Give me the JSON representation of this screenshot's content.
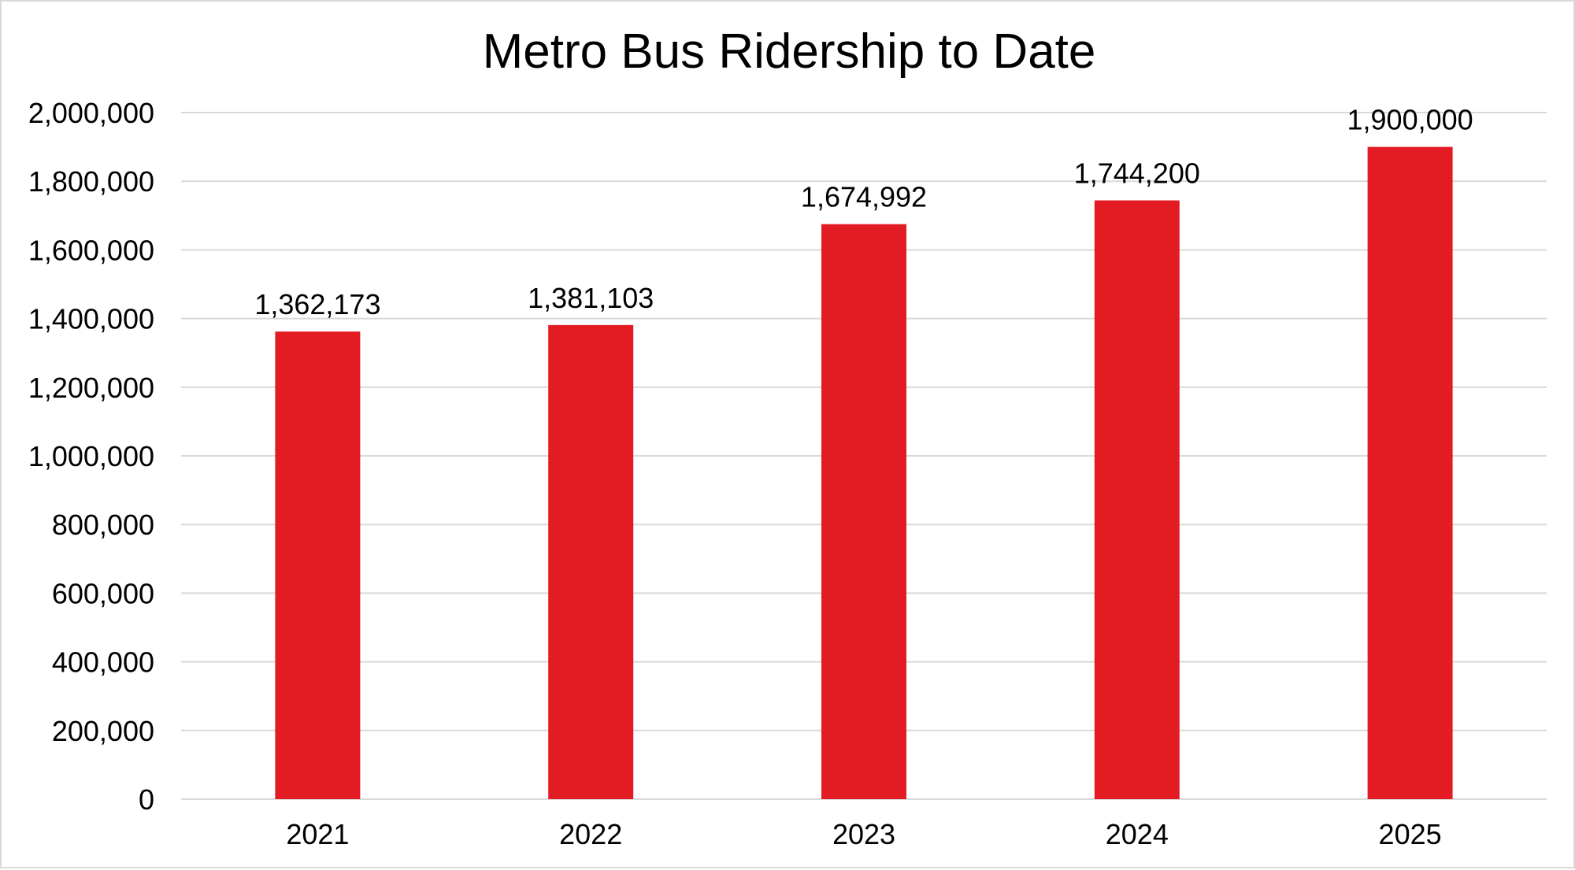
{
  "chart_data": {
    "type": "bar",
    "title": "Metro Bus Ridership to Date",
    "xlabel": "",
    "ylabel": "",
    "categories": [
      "2021",
      "2022",
      "2023",
      "2024",
      "2025"
    ],
    "values": [
      1362173,
      1381103,
      1674992,
      1744200,
      1900000
    ],
    "value_labels": [
      "1,362,173",
      "1,381,103",
      "1,674,992",
      "1,744,200",
      "1,900,000"
    ],
    "ylim": [
      0,
      2000000
    ],
    "y_ticks": [
      0,
      200000,
      400000,
      600000,
      800000,
      1000000,
      1200000,
      1400000,
      1600000,
      1800000,
      2000000
    ],
    "y_tick_labels": [
      "0",
      "200,000",
      "400,000",
      "600,000",
      "800,000",
      "1,000,000",
      "1,200,000",
      "1,400,000",
      "1,600,000",
      "1,800,000",
      "2,000,000"
    ],
    "grid": true,
    "legend": "none",
    "bar_color": "#e31b23"
  }
}
